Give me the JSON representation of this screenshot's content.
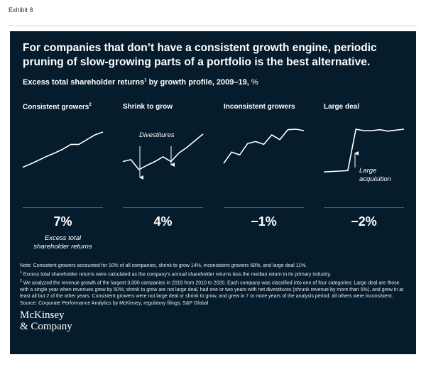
{
  "exhibit_label": "Exhibit 8",
  "headline": "For companies that don’t have a consistent growth engine, periodic pruning of slow-growing parts of a portfolio is the best alternative.",
  "subtitle": {
    "text": "Excess total shareholder returns",
    "sup": "1",
    "rest": " by growth profile, 2009–19,",
    "unit": " %"
  },
  "colors": {
    "background": "#051c2c",
    "line": "#ffffff",
    "rule": "#55616b"
  },
  "chart_data": [
    {
      "type": "line",
      "title": "Consistent growers",
      "title_sup": "2",
      "x": [
        0,
        1,
        2,
        3,
        4,
        5,
        6,
        7,
        8,
        9,
        10
      ],
      "values": [
        20,
        27,
        35,
        43,
        50,
        58,
        68,
        68,
        78,
        88,
        94
      ],
      "ylim": [
        0,
        100
      ],
      "excess_tsr": "7%",
      "caption": [
        "Excess total",
        "shareholder returns"
      ]
    },
    {
      "type": "line",
      "title": "Shrink to grow",
      "x": [
        0,
        1,
        2,
        3,
        4,
        5,
        6,
        7,
        8,
        9,
        10
      ],
      "values": [
        32,
        36,
        15,
        24,
        32,
        42,
        32,
        50,
        62,
        76,
        90
      ],
      "ylim": [
        0,
        100
      ],
      "excess_tsr": "4%",
      "annotation": "Divestitures"
    },
    {
      "type": "line",
      "title": "Inconsistent growers",
      "x": [
        0,
        1,
        2,
        3,
        4,
        5,
        6,
        7,
        8,
        9,
        10
      ],
      "values": [
        28,
        52,
        46,
        70,
        74,
        68,
        88,
        78,
        99,
        100,
        97
      ],
      "ylim": [
        0,
        100
      ],
      "excess_tsr": "−1%"
    },
    {
      "type": "line",
      "title": "Large deal",
      "x": [
        0,
        1,
        2,
        3,
        4,
        5,
        6,
        7,
        8,
        9,
        10
      ],
      "values": [
        10,
        11,
        12,
        13,
        100,
        97,
        97,
        99,
        96,
        98,
        100
      ],
      "ylim": [
        0,
        100
      ],
      "excess_tsr": "−2%",
      "annotation": [
        "Large",
        "acquisition"
      ]
    }
  ],
  "notes": {
    "main": "Note: Consistent growers accounted for 10% of all companies, shrink to grow 14%, inconsistent growers 68%, and large deal 11%.",
    "fn1_mark": "1",
    "fn1": "Excess total shareholder returns were calculated as the company’s annual shareholder returns less the median return in its primary industry.",
    "fn2_mark": "2",
    "fn2": "We analyzed the revenue growth of the largest 3,000 companies in 2019 from 2010 to 2020. Each company was classified into one of four categories: Large deal are those with a single year when revenues grew by 50%; shrink to grow are not large deal, had one or two years with net divestitures (shrunk revenue by more than 5%), and grew in at least all but 2 of the other years. Consistent growers were not large deal or shrink to grow, and grew in 7 or more years of the analysis period; all others were inconsistent.",
    "source": "Source: Corporate Performance Analytics by McKinsey; regulatory filings; S&P Global"
  },
  "logo": {
    "line1": "McKinsey",
    "line2": "& Company"
  }
}
